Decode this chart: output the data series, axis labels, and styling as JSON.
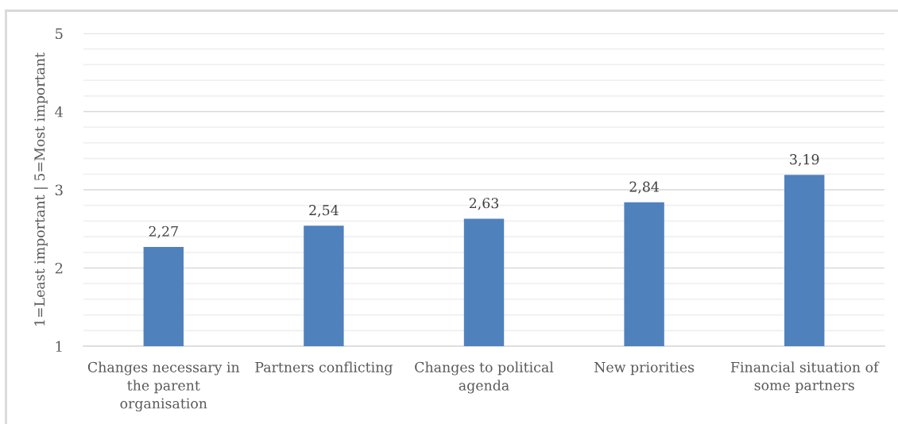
{
  "chart_data": {
    "type": "bar",
    "ylabel": "1=Least important | 5=Most important",
    "categories": [
      "Changes necessary in the parent organisation",
      "Partners conflicting",
      "Changes to political agenda",
      "New priorities",
      "Financial situation of some partners"
    ],
    "values": [
      2.27,
      2.54,
      2.63,
      2.84,
      3.19
    ],
    "value_labels": [
      "2,27",
      "2,54",
      "2,63",
      "2,84",
      "3,19"
    ],
    "color": "#4f81bd",
    "ylim": [
      1,
      5
    ],
    "yticks": [
      1,
      {
        "value": 1.2,
        "label": null
      },
      {
        "value": 1.4,
        "label": null
      },
      {
        "value": 1.6,
        "label": null
      },
      {
        "value": 1.8,
        "label": null
      },
      2,
      {
        "value": 2.2,
        "label": null
      },
      {
        "value": 2.4,
        "label": null
      },
      {
        "value": 2.6,
        "label": null
      },
      {
        "value": 2.8,
        "label": null
      },
      3,
      {
        "value": 3.2,
        "label": null
      },
      {
        "value": 3.4,
        "label": null
      },
      {
        "value": 3.6,
        "label": null
      },
      {
        "value": 3.8,
        "label": null
      },
      4,
      {
        "value": 4.2,
        "label": null
      },
      {
        "value": 4.4,
        "label": null
      },
      {
        "value": 4.6,
        "label": null
      },
      {
        "value": 4.8,
        "label": null
      },
      5
    ],
    "grid": "y"
  }
}
